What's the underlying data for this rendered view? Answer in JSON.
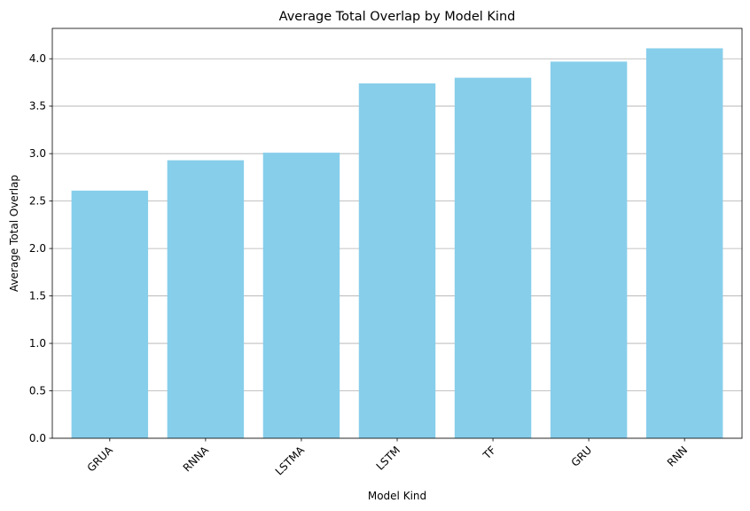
{
  "chart_data": {
    "type": "bar",
    "title": "Average Total Overlap by Model Kind",
    "xlabel": "Model Kind",
    "ylabel": "Average Total Overlap",
    "categories": [
      "GRUA",
      "RNNA",
      "LSTMA",
      "LSTM",
      "TF",
      "GRU",
      "RNN"
    ],
    "values": [
      2.61,
      2.93,
      3.01,
      3.74,
      3.8,
      3.97,
      4.11
    ],
    "ylim": [
      0,
      4.32
    ],
    "yticks": [
      "0.0",
      "0.5",
      "1.0",
      "1.5",
      "2.0",
      "2.5",
      "3.0",
      "3.5",
      "4.0"
    ],
    "grid": "horizontal",
    "bar_color": "#87ceeb",
    "grid_color": "#b0b0b0",
    "x_tick_rotation_deg": 45
  }
}
